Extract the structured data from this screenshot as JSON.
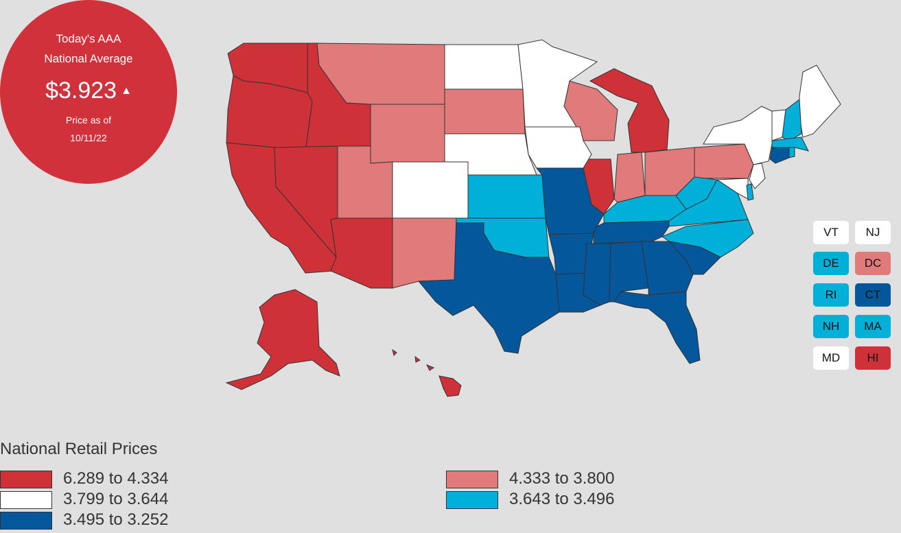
{
  "badge": {
    "line1": "Today's AAA",
    "line2": "National Average",
    "price": "$3.923",
    "trend_icon": "triangle-up-icon",
    "date_line1": "Price as of",
    "date_line2": "10/11/22"
  },
  "colors": {
    "range1": "#cf3139",
    "range2": "#e07a7b",
    "range3": "#ffffff",
    "range4": "#00b0d8",
    "range5": "#04579b"
  },
  "small_states": [
    {
      "abbr": "VT",
      "color": "#ffffff"
    },
    {
      "abbr": "NJ",
      "color": "#ffffff"
    },
    {
      "abbr": "DE",
      "color": "#00b0d8"
    },
    {
      "abbr": "DC",
      "color": "#e07a7b"
    },
    {
      "abbr": "RI",
      "color": "#00b0d8"
    },
    {
      "abbr": "CT",
      "color": "#04579b"
    },
    {
      "abbr": "NH",
      "color": "#00b0d8"
    },
    {
      "abbr": "MA",
      "color": "#00b0d8"
    },
    {
      "abbr": "MD",
      "color": "#ffffff"
    },
    {
      "abbr": "HI",
      "color": "#cf3139"
    }
  ],
  "legend": {
    "title": "National Retail Prices",
    "items": [
      {
        "label": "6.289 to 4.334",
        "color": "#cf3139"
      },
      {
        "label": "4.333 to 3.800",
        "color": "#e07a7b"
      },
      {
        "label": "3.799 to 3.644",
        "color": "#ffffff"
      },
      {
        "label": "3.643 to 3.496",
        "color": "#00b0d8"
      },
      {
        "label": "3.495 to 3.252",
        "color": "#04579b"
      }
    ]
  }
}
